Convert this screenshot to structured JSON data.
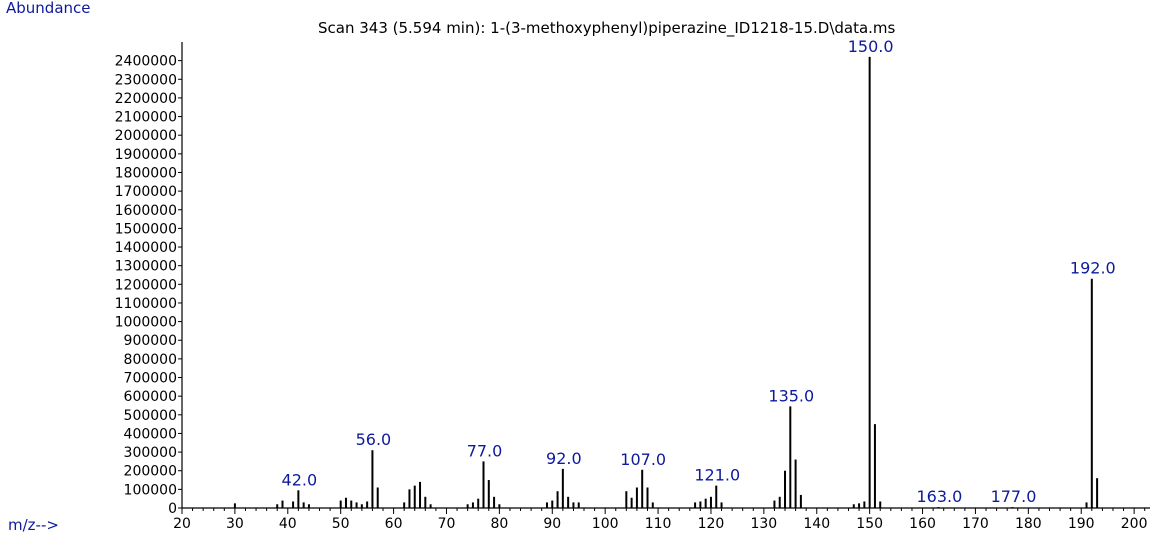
{
  "colors": {
    "label": "#0d1a9c",
    "text": "#000000",
    "axis": "#000000"
  },
  "chart_data": {
    "type": "bar",
    "title": "Scan 343 (5.594 min): 1-(3-methoxyphenyl)piperazine_ID1218-15.D\\data.ms",
    "ylabel": "Abundance",
    "xlabel": "m/z-->",
    "xlim": [
      20,
      203
    ],
    "ylim": [
      0,
      2500000
    ],
    "x_ticks": [
      20,
      30,
      40,
      50,
      60,
      70,
      80,
      90,
      100,
      110,
      120,
      130,
      140,
      150,
      160,
      170,
      180,
      190,
      200
    ],
    "y_ticks": [
      0,
      100000,
      200000,
      300000,
      400000,
      500000,
      600000,
      700000,
      800000,
      900000,
      1000000,
      1100000,
      1200000,
      1300000,
      1400000,
      1500000,
      1600000,
      1700000,
      1800000,
      1900000,
      2000000,
      2100000,
      2200000,
      2300000,
      2400000
    ],
    "peaks": [
      {
        "mz": 30,
        "abundance": 25000
      },
      {
        "mz": 38,
        "abundance": 20000
      },
      {
        "mz": 39,
        "abundance": 40000
      },
      {
        "mz": 41,
        "abundance": 35000
      },
      {
        "mz": 42,
        "abundance": 95000,
        "label": "42.0"
      },
      {
        "mz": 43,
        "abundance": 30000
      },
      {
        "mz": 44,
        "abundance": 20000
      },
      {
        "mz": 50,
        "abundance": 40000
      },
      {
        "mz": 51,
        "abundance": 55000
      },
      {
        "mz": 52,
        "abundance": 40000
      },
      {
        "mz": 53,
        "abundance": 30000
      },
      {
        "mz": 54,
        "abundance": 20000
      },
      {
        "mz": 55,
        "abundance": 35000
      },
      {
        "mz": 56,
        "abundance": 310000,
        "label": "56.0"
      },
      {
        "mz": 57,
        "abundance": 110000
      },
      {
        "mz": 62,
        "abundance": 30000
      },
      {
        "mz": 63,
        "abundance": 100000
      },
      {
        "mz": 64,
        "abundance": 120000
      },
      {
        "mz": 65,
        "abundance": 140000
      },
      {
        "mz": 66,
        "abundance": 60000
      },
      {
        "mz": 67,
        "abundance": 20000
      },
      {
        "mz": 74,
        "abundance": 20000
      },
      {
        "mz": 75,
        "abundance": 30000
      },
      {
        "mz": 76,
        "abundance": 50000
      },
      {
        "mz": 77,
        "abundance": 250000,
        "label": "77.0"
      },
      {
        "mz": 78,
        "abundance": 150000
      },
      {
        "mz": 79,
        "abundance": 60000
      },
      {
        "mz": 80,
        "abundance": 20000
      },
      {
        "mz": 89,
        "abundance": 30000
      },
      {
        "mz": 90,
        "abundance": 40000
      },
      {
        "mz": 91,
        "abundance": 90000
      },
      {
        "mz": 92,
        "abundance": 210000,
        "label": "92.0"
      },
      {
        "mz": 93,
        "abundance": 60000
      },
      {
        "mz": 94,
        "abundance": 30000
      },
      {
        "mz": 95,
        "abundance": 30000
      },
      {
        "mz": 104,
        "abundance": 90000
      },
      {
        "mz": 105,
        "abundance": 55000
      },
      {
        "mz": 106,
        "abundance": 110000
      },
      {
        "mz": 107,
        "abundance": 205000,
        "label": "107.0"
      },
      {
        "mz": 108,
        "abundance": 110000
      },
      {
        "mz": 109,
        "abundance": 30000
      },
      {
        "mz": 117,
        "abundance": 30000
      },
      {
        "mz": 118,
        "abundance": 35000
      },
      {
        "mz": 119,
        "abundance": 50000
      },
      {
        "mz": 120,
        "abundance": 60000
      },
      {
        "mz": 121,
        "abundance": 120000,
        "label": "121.0"
      },
      {
        "mz": 122,
        "abundance": 30000
      },
      {
        "mz": 132,
        "abundance": 40000
      },
      {
        "mz": 133,
        "abundance": 60000
      },
      {
        "mz": 134,
        "abundance": 200000
      },
      {
        "mz": 135,
        "abundance": 545000,
        "label": "135.0"
      },
      {
        "mz": 136,
        "abundance": 260000
      },
      {
        "mz": 137,
        "abundance": 70000
      },
      {
        "mz": 147,
        "abundance": 20000
      },
      {
        "mz": 148,
        "abundance": 25000
      },
      {
        "mz": 149,
        "abundance": 35000
      },
      {
        "mz": 150,
        "abundance": 2420000,
        "label": "150.0"
      },
      {
        "mz": 151,
        "abundance": 450000
      },
      {
        "mz": 152,
        "abundance": 35000
      },
      {
        "mz": 163,
        "abundance": 5000,
        "label": "163.0"
      },
      {
        "mz": 177,
        "abundance": 5000,
        "label": "177.0"
      },
      {
        "mz": 191,
        "abundance": 30000
      },
      {
        "mz": 192,
        "abundance": 1230000,
        "label": "192.0"
      },
      {
        "mz": 193,
        "abundance": 160000
      }
    ]
  }
}
